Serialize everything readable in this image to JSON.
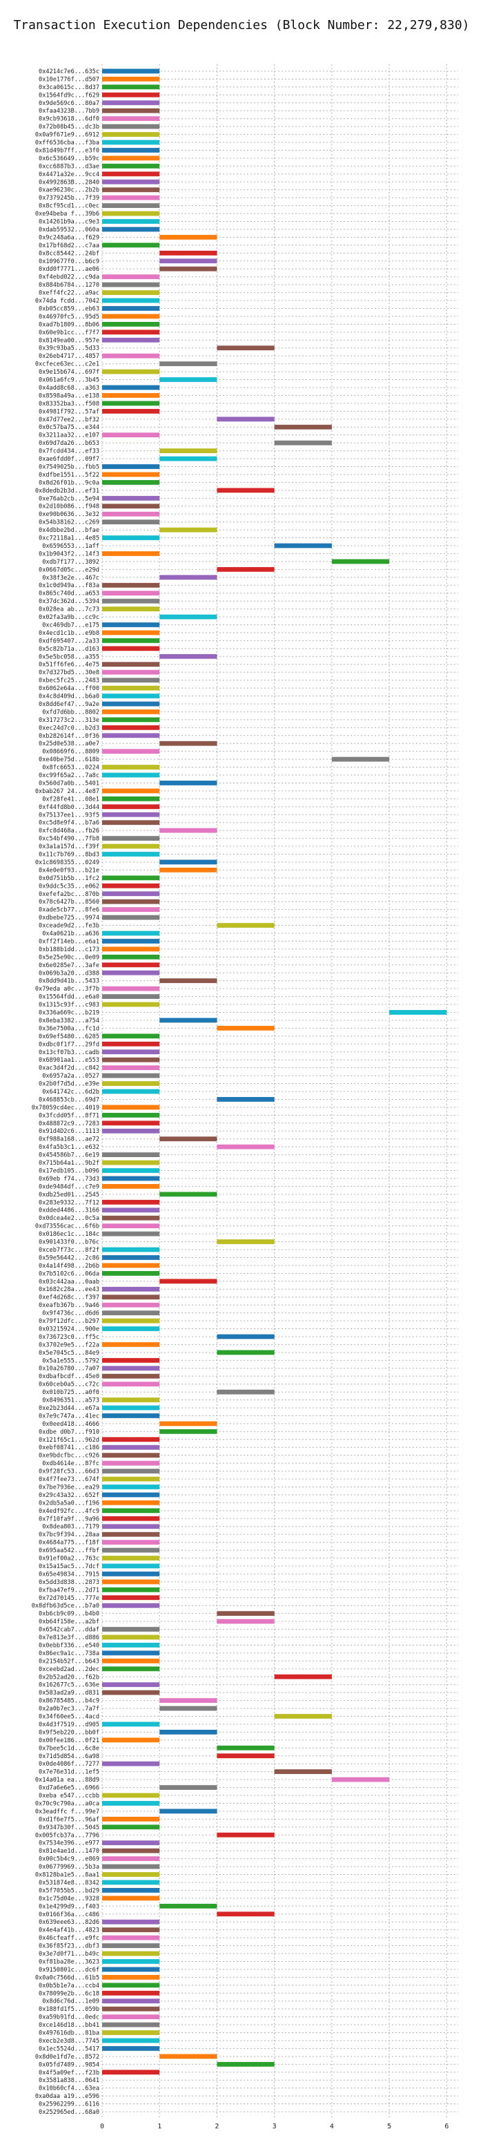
{
  "chart_data": {
    "type": "gantt",
    "title": "Transaction Execution Dependencies (Block Number: 22,279,830)",
    "xlim": [
      0,
      6.2
    ],
    "xticks": [
      0,
      1,
      2,
      3,
      4,
      5,
      6
    ],
    "grid": true,
    "palette": [
      "#1f77b4",
      "#ff7f0e",
      "#2ca02c",
      "#d62728",
      "#9467bd",
      "#8c564b",
      "#e377c2",
      "#7f7f7f",
      "#bcbd22",
      "#17becf"
    ],
    "transactions": [
      "0x4214c7e6...635c",
      "0x10e1776f...d507",
      "0x3ca0615c...8d37",
      "0x1564fd9c...f629",
      "0x9de569c6...80a7",
      "0xfaa4323B...7bb9",
      "0x9cb93618...6df0",
      "0x72b08b45...dc3b",
      "0x0a9f671e9...6912",
      "0xff6536cba...f3ba",
      "0x81d49b7ff...e3f0",
      "0x6c536649...b59c",
      "0xcc6887b3...d3ae",
      "0x4471a32e...9cc4",
      "0x4992863B...2840",
      "0xae96230c...2b2b",
      "0x7379245b...7f39",
      "0x8cf95cd1...c0ec",
      "0xe94beba f...39b6",
      "0x14261b9a...c9e3",
      "0xdab59532...060a",
      "0x9c248a6a...f629",
      "0x17bf68d2...c7aa",
      "0x8cc85442...24bf",
      "0x109677f0...b6c9",
      "0xdd0f7771...ae06",
      "0xf4ebd022...c9da",
      "0x884b6784...1270",
      "0xeff4fc22...a9ac",
      "0x74da fcdd...7042",
      "0xb05cc859...eb63",
      "0x46970fc5...95d5",
      "0xad7b1809...8b06",
      "0x60e9b1cc...f7f7",
      "0x8149ea00...957e",
      "0x39c93ba5...5d33",
      "0x26eb4717...4857",
      "0xcfece63ec...c2e1",
      "0x9e15b674...697f",
      "0x061a6fc9...3b45",
      "0x4add8c68...a363",
      "0x8598a49a...e138",
      "0x83352ba3...f508",
      "0x4981f792...57af",
      "0x47d77ee2...bf32",
      "0x0c57ba75...e344",
      "0x3211aa32...e107",
      "0x69d7da26...b653",
      "0x7fcdd434...ef33",
      "0xae6fdd0f...09f7",
      "0x7549025b...fbb5",
      "0xdfbe1551...5f22",
      "0x8d26f01b...9c0a",
      "0x8dedb2b3d...ef31",
      "0xe76ab2cb...5e94",
      "0x2d10b086...f948",
      "0xe90b0636...3e32",
      "0x54b38162...c269",
      "0x4dbbe2bd...bfae",
      "0xc72118a1...4e85",
      "0x6596553...1aff",
      "0x1b9043f2...14f3",
      "0xdb7f177...3892",
      "0x0667d05c...e29d",
      "0x38f3e2e...467c",
      "0x1c0d949a...f83a",
      "0x865c740d...a653",
      "0x37dc362d...5394",
      "0x028ea ab...7c73",
      "0x02fa3a9b...cc9c",
      "0xc469db7...e175",
      "0x4ecd1c1b...e9b8",
      "0xdf695407...2a33",
      "0x5c82b71a...d163",
      "0x5e5bc058...a355",
      "0x51ff6fe6...4e75",
      "0x7d327bd5...30e8",
      "0xbec5fc25...2483",
      "0x6062e64a...ff00",
      "0x4c8d409d...b6a0",
      "0x8dd6ef47...9a2e",
      "0xfd7d6bb...8802",
      "0x317273c2...313e",
      "0xec24d7c0...b2d3",
      "0xb282614f...0f36",
      "0x25d0e538...a0e7",
      "0x08669f6...8809",
      "0xe40be75d...618b",
      "0x8fc6653...0224",
      "0xc99f65a2...7a8c",
      "0x560d7a0b...5401",
      "0xbab267 24...4e87",
      "0xf28fe41...08e1",
      "0xf44fd8b0...3d44",
      "0x75137ee1...93f5",
      "0xc5d8e9f4...b7a6",
      "0xfc8d468a...fb26",
      "0xc54bf490...7fb8",
      "0x3a1a157d...f39f",
      "0x11c7b769...8bd3",
      "0x1c8698355...0249",
      "0x4e0e0f93...b21e",
      "0x0d751b5b...1fc2",
      "0x9ddc5c35...e062",
      "0xefefa2bc...870b",
      "0x78c6427b...8560",
      "0xade5cb77...8fe6",
      "0xdbebe725...9974",
      "0xceade9d2...fe3b",
      "0x4a0621b...a636",
      "0xff2f14eb...e6a1",
      "0xb188b1dd...c173",
      "0x5e25e90c...0e09",
      "0x6e0285e7...3afe",
      "0x069b3a20...d388",
      "0x8dd9d41b...5433",
      "0x79eda a0c...3f7b",
      "0x15564fdd...e6a0",
      "0x1315c93f...c983",
      "0x336a669c...b219",
      "0x8eba3382...a754",
      "0x36e7500a...fc1d",
      "0x69ef5480...6285",
      "0xdbc0f1f7...29fd",
      "0x13cf07b3...cadb",
      "0x68901aa1...e553",
      "0xac3d4f2d...c842",
      "0x6957a2a...0527",
      "0x2b0f7d5d...e39e",
      "0x641742c...6d2b",
      "0x468853cb...69d7",
      "0x78059cd4ec...4019",
      "0x3fcdd05f...8f71",
      "0x488872c9...7283",
      "0x91d4D2c6...1113",
      "0xf988a168...ae72",
      "0x4fa5b3c1...e632",
      "0x454586b7...6e19",
      "0x715b64a1...9b2f",
      "0x17edb105...b096",
      "0x69eb f74...73d3",
      "0xde9484df...c7e9",
      "0xdb25ed01...2545",
      "0x283e9332...7f12",
      "0xdded4486...3166",
      "0x0dcea4e2...0c5a",
      "0xd73556cac...6f6b",
      "0x0186ec1c...184c",
      "0x901433f0...b76c",
      "0xceb7f73c...8f2f",
      "0x59e56442...2c86",
      "0x4a14f498...2b6b",
      "0x7b5102c6...06da",
      "0x03c442aa...0aab",
      "0x1682c28a...ee43",
      "0xef4d268c...f397",
      "0xeafb367b...9a46",
      "0x9f4736c...d6d6",
      "0x79f12dfc...b297",
      "0x03215924...900e",
      "0x736723c0...ff5c",
      "0x3702e9e5...f22a",
      "0x5e7045c5...84e9",
      "0x5a1e555...5792",
      "0x10a26780...7a07",
      "0xdbafbcdf...45e0",
      "0x60ceb0a5...c72c",
      "0x010b725...a0f0",
      "0x8496351...a573",
      "0xe2b23d44...e67a",
      "0x7e9c747a...41ec",
      "0x0eed418...4666",
      "0xdbe d0b7...f910",
      "0x121f65c1...962d",
      "0xebf08741...c186",
      "0xe9bdcfbc...c926",
      "0xdb4614e...87fc",
      "0x9f28fc53...66d3",
      "0x4f7fee73...674f",
      "0x7be7936e...ea29",
      "0x29c43a32...652f",
      "0x2db5a5a0...f196",
      "0x4edf92fc...4fc9",
      "0x7f10fa9f...9a96",
      "0x8dea803...7179",
      "0x7bc9f394...28aa",
      "0x4684a775...f18f",
      "0x695aa542...ffbf",
      "0x91ef00a2...763c",
      "0x15a15ac5...7dcf",
      "0x65e49834...7915",
      "0x5dd3d838...2873",
      "0xfba47ef9...2d71",
      "0x72d70145...777e",
      "0x8dfb63d5ce...b7a0",
      "0xb6cb9c09...b4b0",
      "0xb64f158e...a2bf",
      "0x6542cab7...ddaf",
      "0x7e813e3f...d886",
      "0x0ebbf336...e540",
      "0x86ec9a1c...738a",
      "0x2154b52f...b643",
      "0xceebd2ad...2dec",
      "0x2b52ad20...f62b",
      "0x162677c5...636e",
      "0x583ad2a9...d831",
      "0x86785485...b4c9",
      "0x2a0b7ec3...7a7f",
      "0x34f60ee5...4acd",
      "0x4d3f7519...d905",
      "0x9f5eb220...bb0f",
      "0x00fee186...0f21",
      "0x7bee5c1d...6c8e",
      "0x71d5d854...6a98",
      "0x0de4086f...7277",
      "0x7e76e31d...1ef5",
      "0x14a01a ea...88d9",
      "0xd7a6e6e5...6966",
      "0xeba e547...ccbb",
      "0x70c9c790a...a0ca",
      "0x3eadffc f...99e7",
      "0xd1f6e7f5...96af",
      "0x9347b30f...5045",
      "0x005fcb37a...7796",
      "0x7534e396...e977",
      "0x81e4ae1d...1470",
      "0x00c5b4c9...e869",
      "0x06779969...5b3a",
      "0x8128ba1e5...8aa1",
      "0x531874e8...8342",
      "0x5f7055b5...bd29",
      "0x1c75d04e...9328",
      "0x1e4299d9...f403",
      "0x0166f36a...c486",
      "0x639eee63...82d6",
      "0x4e4af41b...4823",
      "0x46cfeaff...e9fc",
      "0x36f85f23...dbf3",
      "0x3e7d0f71...b49c",
      "0xf81ba28e...3623",
      "0x9150801c...dc6f",
      "0x0a0c7566d...61b5",
      "0x0b5b1e7a...ccb4",
      "0x78099e2b...6c18",
      "0x8d6c76d...1e09",
      "0x188fd1f5...059b",
      "0xa59b91fd...0edc",
      "0xce146d18...bb41",
      "0x497616db...81ba",
      "0xecb2e3d8...7745",
      "0x1ec5524d...5417",
      "0x8d0e1fd7e...8572",
      "0x05fd7489...9854",
      "0x4f5a09ef...f23b",
      "0x3581a838...0641",
      "0x10b60cf4...63ea",
      "0xa0daa a19...e596",
      "0x25962299...6116",
      "0x252965ed...68a0"
    ],
    "bars": [
      [
        0,
        1
      ],
      [
        0,
        1
      ],
      [
        0,
        1
      ],
      [
        0,
        1
      ],
      [
        0,
        1
      ],
      [
        0,
        1
      ],
      [
        0,
        1
      ],
      [
        0,
        1
      ],
      [
        0,
        1
      ],
      [
        0,
        1
      ],
      [
        0,
        1
      ],
      [
        0,
        1
      ],
      [
        0,
        1
      ],
      [
        0,
        1
      ],
      [
        0,
        1
      ],
      [
        0,
        1
      ],
      [
        0,
        1
      ],
      [
        0,
        1
      ],
      [
        0,
        1
      ],
      [
        0,
        1
      ],
      [
        0,
        1
      ],
      [
        1,
        2
      ],
      [
        0,
        1
      ],
      [
        1,
        2
      ],
      [
        1,
        2
      ],
      [
        1,
        2
      ],
      [
        0,
        1
      ],
      [
        0,
        1
      ],
      [
        0,
        1
      ],
      [
        0,
        1
      ],
      [
        0,
        1
      ],
      [
        0,
        1
      ],
      [
        0,
        1
      ],
      [
        0,
        1
      ],
      [
        0,
        1
      ],
      [
        2,
        3
      ],
      [
        0,
        1
      ],
      [
        1,
        2
      ],
      [
        0,
        1
      ],
      [
        1,
        2
      ],
      [
        0,
        1
      ],
      [
        0,
        1
      ],
      [
        0,
        1
      ],
      [
        0,
        1
      ],
      [
        2,
        3
      ],
      [
        3,
        4
      ],
      [
        0,
        1
      ],
      [
        3,
        4
      ],
      [
        1,
        2
      ],
      [
        1,
        2
      ],
      [
        0,
        1
      ],
      [
        0,
        1
      ],
      [
        0,
        1
      ],
      [
        2,
        3
      ],
      [
        0,
        1
      ],
      [
        0,
        1
      ],
      [
        0,
        1
      ],
      [
        0,
        1
      ],
      [
        1,
        2
      ],
      [
        0,
        1
      ],
      [
        3,
        4
      ],
      [
        0,
        1
      ],
      [
        4,
        5
      ],
      [
        2,
        3
      ],
      [
        1,
        2
      ],
      [
        0,
        1
      ],
      [
        0,
        1
      ],
      [
        0,
        1
      ],
      [
        0,
        1
      ],
      [
        1,
        2
      ],
      [
        0,
        1
      ],
      [
        0,
        1
      ],
      [
        0,
        1
      ],
      [
        0,
        1
      ],
      [
        1,
        2
      ],
      [
        0,
        1
      ],
      [
        0,
        1
      ],
      [
        0,
        1
      ],
      [
        0,
        1
      ],
      [
        0,
        1
      ],
      [
        0,
        1
      ],
      [
        0,
        1
      ],
      [
        0,
        1
      ],
      [
        0,
        1
      ],
      [
        0,
        1
      ],
      [
        1,
        2
      ],
      [
        0,
        1
      ],
      [
        4,
        5
      ],
      [
        0,
        1
      ],
      [
        0,
        1
      ],
      [
        1,
        2
      ],
      [
        0,
        1
      ],
      [
        0,
        1
      ],
      [
        0,
        1
      ],
      [
        0,
        1
      ],
      [
        0,
        1
      ],
      [
        1,
        2
      ],
      [
        0,
        1
      ],
      [
        0,
        1
      ],
      [
        0,
        1
      ],
      [
        1,
        2
      ],
      [
        1,
        2
      ],
      [
        0,
        1
      ],
      [
        0,
        1
      ],
      [
        0,
        1
      ],
      [
        0,
        1
      ],
      [
        0,
        1
      ],
      [
        0,
        1
      ],
      [
        2,
        3
      ],
      [
        0,
        1
      ],
      [
        0,
        1
      ],
      [
        0,
        1
      ],
      [
        0,
        1
      ],
      [
        0,
        1
      ],
      [
        0,
        1
      ],
      [
        1,
        2
      ],
      [
        0,
        1
      ],
      [
        0,
        1
      ],
      [
        0,
        1
      ],
      [
        5,
        6
      ],
      [
        1,
        2
      ],
      [
        2,
        3
      ],
      [
        0,
        1
      ],
      [
        0,
        1
      ],
      [
        0,
        1
      ],
      [
        0,
        1
      ],
      [
        0,
        1
      ],
      [
        0,
        1
      ],
      [
        0,
        1
      ],
      [
        0,
        1
      ],
      [
        2,
        3
      ],
      [
        0,
        1
      ],
      [
        0,
        1
      ],
      [
        0,
        1
      ],
      [
        0,
        1
      ],
      [
        1,
        2
      ],
      [
        2,
        3
      ],
      [
        0,
        1
      ],
      [
        0,
        1
      ],
      [
        0,
        1
      ],
      [
        0,
        1
      ],
      [
        0,
        1
      ],
      [
        1,
        2
      ],
      [
        0,
        1
      ],
      [
        0,
        1
      ],
      [
        0,
        1
      ],
      [
        0,
        1
      ],
      [
        0,
        1
      ],
      [
        2,
        3
      ],
      [
        0,
        1
      ],
      [
        0,
        1
      ],
      [
        0,
        1
      ],
      [
        0,
        1
      ],
      [
        1,
        2
      ],
      [
        0,
        1
      ],
      [
        0,
        1
      ],
      [
        0,
        1
      ],
      [
        0,
        1
      ],
      [
        0,
        1
      ],
      [
        0,
        1
      ],
      [
        2,
        3
      ],
      [
        0,
        1
      ],
      [
        2,
        3
      ],
      [
        0,
        1
      ],
      [
        0,
        1
      ],
      [
        0,
        1
      ],
      [
        0,
        1
      ],
      [
        2,
        3
      ],
      [
        0,
        1
      ],
      [
        0,
        1
      ],
      [
        0,
        1
      ],
      [
        1,
        2
      ],
      [
        1,
        2
      ],
      [
        0,
        1
      ],
      [
        0,
        1
      ],
      [
        0,
        1
      ],
      [
        0,
        1
      ],
      [
        0,
        1
      ],
      [
        0,
        1
      ],
      [
        0,
        1
      ],
      [
        0,
        1
      ],
      [
        0,
        1
      ],
      [
        0,
        1
      ],
      [
        0,
        1
      ],
      [
        0,
        1
      ],
      [
        0,
        1
      ],
      [
        0,
        1
      ],
      [
        0,
        1
      ],
      [
        0,
        1
      ],
      [
        0,
        1
      ],
      [
        0,
        1
      ],
      [
        0,
        1
      ],
      [
        0,
        1
      ],
      [
        0,
        1
      ],
      [
        0,
        1
      ],
      [
        2,
        3
      ],
      [
        2,
        3
      ],
      [
        0,
        1
      ],
      [
        0,
        1
      ],
      [
        0,
        1
      ],
      [
        0,
        1
      ],
      [
        0,
        1
      ],
      [
        0,
        1
      ],
      [
        3,
        4
      ],
      [
        0,
        1
      ],
      [
        0,
        1
      ],
      [
        1,
        2
      ],
      [
        1,
        2
      ],
      [
        3,
        4
      ],
      [
        0,
        1
      ],
      [
        1,
        2
      ],
      [
        0,
        1
      ],
      [
        2,
        3
      ],
      [
        2,
        3
      ],
      [
        0,
        1
      ],
      [
        3,
        4
      ],
      [
        4,
        5
      ],
      [
        1,
        2
      ],
      [
        0,
        1
      ],
      [
        0,
        1
      ],
      [
        1,
        2
      ],
      [
        0,
        1
      ],
      [
        0,
        1
      ],
      [
        2,
        3
      ],
      [
        0,
        1
      ],
      [
        0,
        1
      ],
      [
        0,
        1
      ],
      [
        0,
        1
      ],
      [
        0,
        1
      ],
      [
        0,
        1
      ],
      [
        0,
        1
      ],
      [
        0,
        1
      ],
      [
        1,
        2
      ],
      [
        2,
        3
      ],
      [
        0,
        1
      ],
      [
        0,
        1
      ],
      [
        0,
        1
      ],
      [
        0,
        1
      ],
      [
        0,
        1
      ],
      [
        0,
        1
      ],
      [
        0,
        1
      ],
      [
        0,
        1
      ],
      [
        0,
        1
      ],
      [
        0,
        1
      ],
      [
        0,
        1
      ],
      [
        0,
        1
      ],
      [
        0,
        1
      ],
      [
        0,
        1
      ],
      [
        0,
        1
      ],
      [
        0,
        1
      ],
      [
        0,
        1
      ],
      [
        1,
        2
      ],
      [
        2,
        3
      ],
      [
        0,
        1
      ]
    ]
  }
}
